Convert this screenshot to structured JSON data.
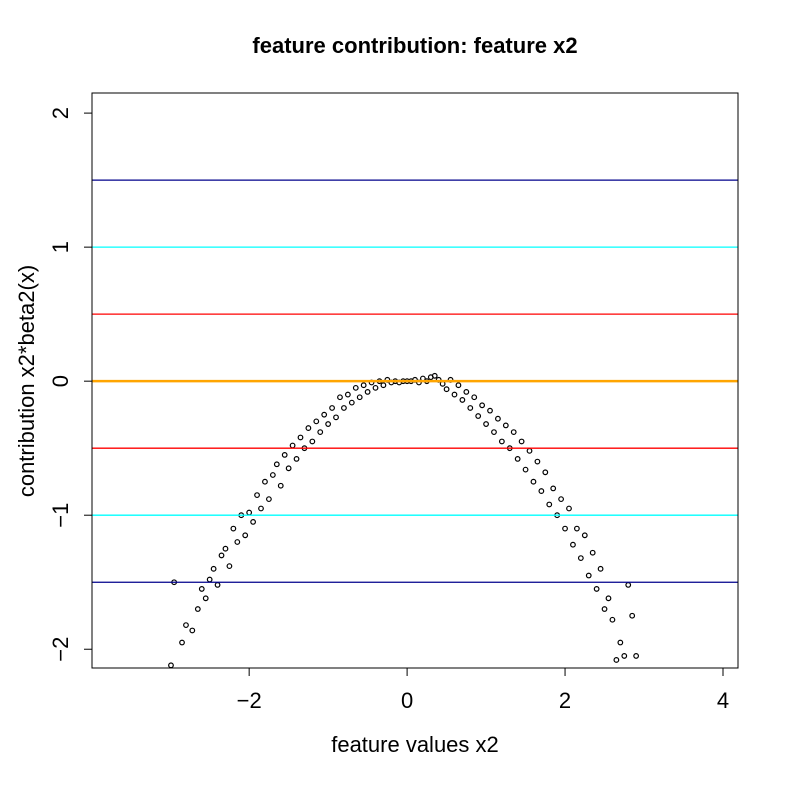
{
  "chart_data": {
    "type": "scatter",
    "title": "feature contribution: feature x2",
    "x_label": "feature values x2",
    "y_label": "contribution  x2*beta2(x)",
    "color": "#000000",
    "xlim": [
      -3.99,
      4.19
    ],
    "ylim": [
      -2.14,
      2.15
    ],
    "xticks": [
      {
        "value": -2,
        "label": "−2"
      },
      0,
      2,
      4
    ],
    "yticks": [
      {
        "value": -2,
        "label": "−2"
      },
      {
        "value": -1,
        "label": "−1"
      },
      0,
      1,
      2
    ],
    "hlines": [
      {
        "value": 1.5,
        "color": "#00008b"
      },
      {
        "value": 1,
        "color": "#00ffff"
      },
      {
        "value": 0.5,
        "color": "#ff0000"
      },
      {
        "value": -0.5,
        "color": "#ff0000"
      },
      {
        "value": -1,
        "color": "#00ffff"
      },
      {
        "value": -1.5,
        "color": "#00008b"
      },
      {
        "value": 0,
        "color": "#ffa500"
      }
    ],
    "x": [
      -2.99,
      -2.95,
      -2.85,
      -2.8,
      -2.72,
      -2.65,
      -2.6,
      -2.55,
      -2.5,
      -2.45,
      -2.4,
      -2.35,
      -2.3,
      -2.25,
      -2.2,
      -2.15,
      -2.1,
      -2.05,
      -2.0,
      -1.95,
      -1.9,
      -1.85,
      -1.8,
      -1.75,
      -1.7,
      -1.65,
      -1.6,
      -1.55,
      -1.5,
      -1.45,
      -1.4,
      -1.35,
      -1.3,
      -1.25,
      -1.2,
      -1.15,
      -1.1,
      -1.05,
      -1.0,
      -0.95,
      -0.9,
      -0.85,
      -0.8,
      -0.75,
      -0.7,
      -0.65,
      -0.6,
      -0.55,
      -0.5,
      -0.45,
      -0.4,
      -0.35,
      -0.3,
      -0.25,
      -0.2,
      -0.15,
      -0.1,
      -0.05,
      0.0,
      0.05,
      0.1,
      0.15,
      0.2,
      0.25,
      0.3,
      0.35,
      0.4,
      0.45,
      0.5,
      0.55,
      0.6,
      0.65,
      0.7,
      0.75,
      0.8,
      0.85,
      0.9,
      0.95,
      1.0,
      1.05,
      1.1,
      1.15,
      1.2,
      1.25,
      1.3,
      1.35,
      1.4,
      1.45,
      1.5,
      1.55,
      1.6,
      1.65,
      1.7,
      1.75,
      1.8,
      1.85,
      1.9,
      1.95,
      2.0,
      2.05,
      2.1,
      2.15,
      2.2,
      2.25,
      2.3,
      2.35,
      2.4,
      2.45,
      2.5,
      2.55,
      2.6,
      2.65,
      2.7,
      2.75,
      2.8,
      2.85,
      2.9
    ],
    "values": [
      -2.12,
      -1.5,
      -1.95,
      -1.82,
      -1.86,
      -1.7,
      -1.55,
      -1.62,
      -1.48,
      -1.4,
      -1.52,
      -1.3,
      -1.25,
      -1.38,
      -1.1,
      -1.2,
      -1.0,
      -1.15,
      -0.98,
      -1.05,
      -0.85,
      -0.95,
      -0.75,
      -0.88,
      -0.7,
      -0.62,
      -0.78,
      -0.55,
      -0.65,
      -0.48,
      -0.58,
      -0.42,
      -0.5,
      -0.35,
      -0.45,
      -0.3,
      -0.38,
      -0.25,
      -0.32,
      -0.2,
      -0.27,
      -0.12,
      -0.2,
      -0.1,
      -0.16,
      -0.05,
      -0.12,
      -0.03,
      -0.08,
      -0.01,
      -0.05,
      0.0,
      -0.03,
      0.01,
      -0.01,
      0.0,
      -0.01,
      0.0,
      0.0,
      0.0,
      0.01,
      -0.01,
      0.02,
      0.0,
      0.03,
      0.04,
      0.01,
      -0.02,
      -0.06,
      0.01,
      -0.1,
      -0.03,
      -0.14,
      -0.08,
      -0.2,
      -0.12,
      -0.26,
      -0.18,
      -0.32,
      -0.22,
      -0.38,
      -0.28,
      -0.45,
      -0.33,
      -0.5,
      -0.38,
      -0.58,
      -0.45,
      -0.66,
      -0.52,
      -0.75,
      -0.6,
      -0.82,
      -0.68,
      -0.92,
      -0.8,
      -1.0,
      -0.88,
      -1.1,
      -0.95,
      -1.22,
      -1.1,
      -1.32,
      -1.15,
      -1.45,
      -1.28,
      -1.55,
      -1.4,
      -1.7,
      -1.62,
      -1.78,
      -2.08,
      -1.95,
      -2.05,
      -1.52,
      -1.75,
      -2.05
    ]
  }
}
